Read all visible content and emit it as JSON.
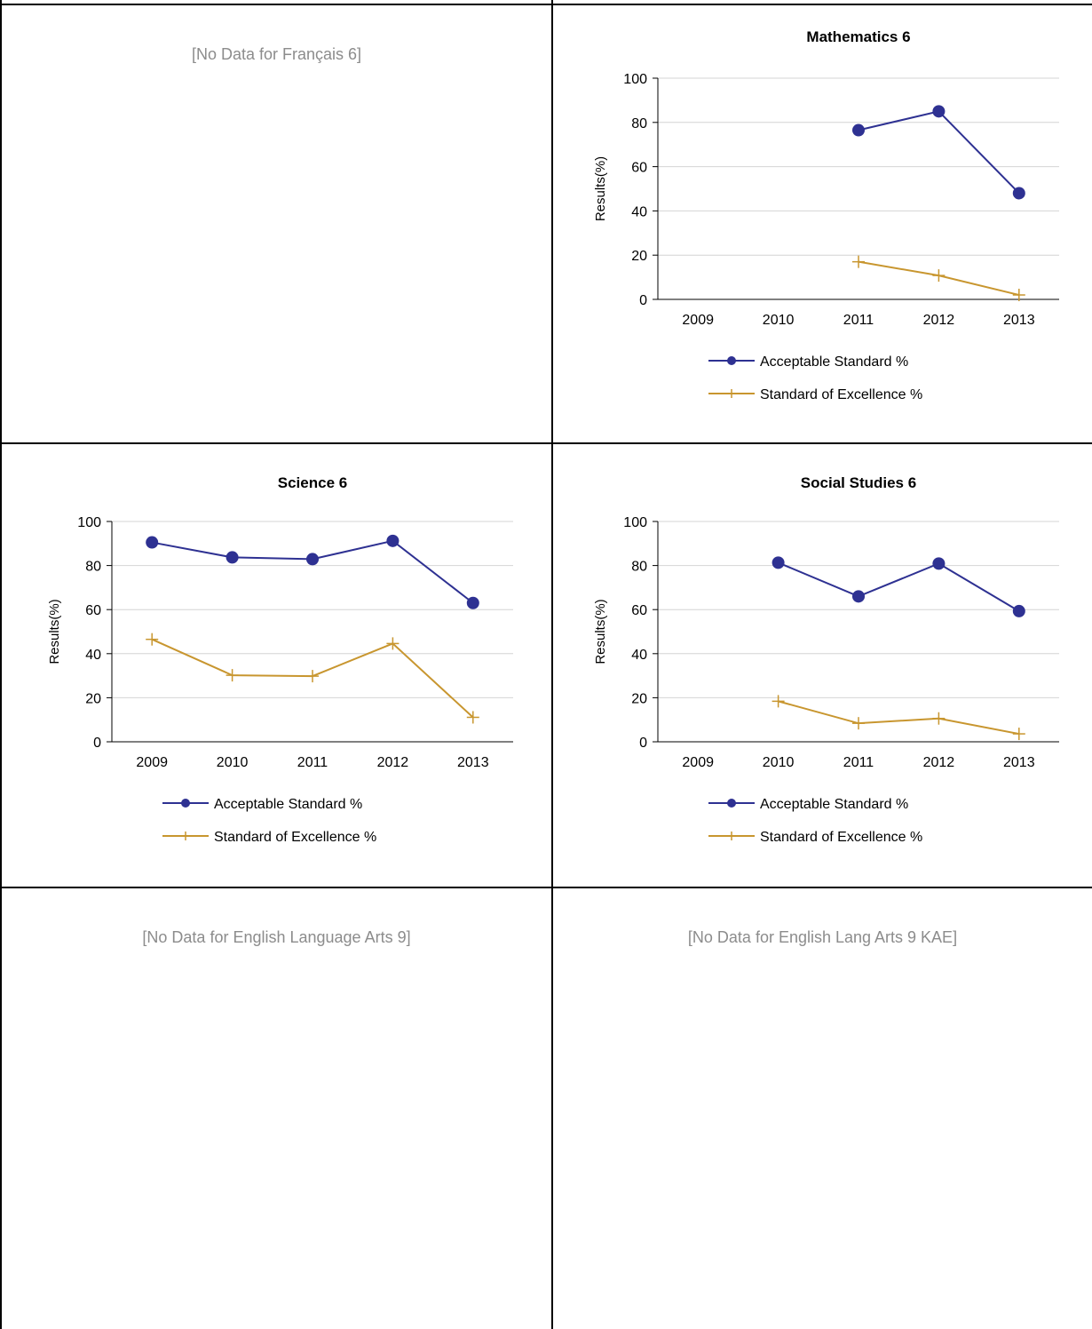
{
  "no_data": {
    "francais6": "[No Data for Français 6]",
    "ela9": "[No Data for English Language Arts 9]",
    "ela9kae": "[No Data for English Lang Arts 9 KAE]"
  },
  "colors": {
    "acceptable": "#2e3192",
    "excellence": "#c8962f",
    "gridline": "#d4d4d4",
    "nodata_text": "#8c8c8c"
  },
  "chart_data": [
    {
      "id": "math6",
      "type": "line",
      "title": "Mathematics 6",
      "ylabel": "Results(%)",
      "xlabel": "",
      "ylim": [
        0,
        100
      ],
      "yticks": [
        0,
        20,
        40,
        60,
        80,
        100
      ],
      "grid": true,
      "legend": "bottom",
      "categories": [
        "2009",
        "2010",
        "2011",
        "2012",
        "2013"
      ],
      "series": [
        {
          "name": "Acceptable Standard %",
          "marker": "circle",
          "values": [
            null,
            null,
            76.5,
            85.0,
            48.0
          ]
        },
        {
          "name": "Standard of Excellence %",
          "marker": "plus",
          "values": [
            null,
            null,
            17.0,
            10.8,
            2.0
          ]
        }
      ]
    },
    {
      "id": "science6",
      "type": "line",
      "title": "Science 6",
      "ylabel": "Results(%)",
      "xlabel": "",
      "ylim": [
        0,
        100
      ],
      "yticks": [
        0,
        20,
        40,
        60,
        80,
        100
      ],
      "grid": true,
      "legend": "bottom",
      "categories": [
        "2009",
        "2010",
        "2011",
        "2012",
        "2013"
      ],
      "series": [
        {
          "name": "Acceptable Standard %",
          "marker": "circle",
          "values": [
            90.5,
            83.7,
            82.9,
            91.2,
            63.0
          ]
        },
        {
          "name": "Standard of Excellence %",
          "marker": "plus",
          "values": [
            46.5,
            30.2,
            29.8,
            44.6,
            11.1
          ]
        }
      ]
    },
    {
      "id": "social6",
      "type": "line",
      "title": "Social Studies 6",
      "ylabel": "Results(%)",
      "xlabel": "",
      "ylim": [
        0,
        100
      ],
      "yticks": [
        0,
        20,
        40,
        60,
        80,
        100
      ],
      "grid": true,
      "legend": "bottom",
      "categories": [
        "2009",
        "2010",
        "2011",
        "2012",
        "2013"
      ],
      "series": [
        {
          "name": "Acceptable Standard %",
          "marker": "circle",
          "values": [
            null,
            81.3,
            66.0,
            80.9,
            59.3
          ]
        },
        {
          "name": "Standard of Excellence %",
          "marker": "plus",
          "values": [
            null,
            18.4,
            8.4,
            10.6,
            3.6
          ]
        }
      ]
    }
  ]
}
